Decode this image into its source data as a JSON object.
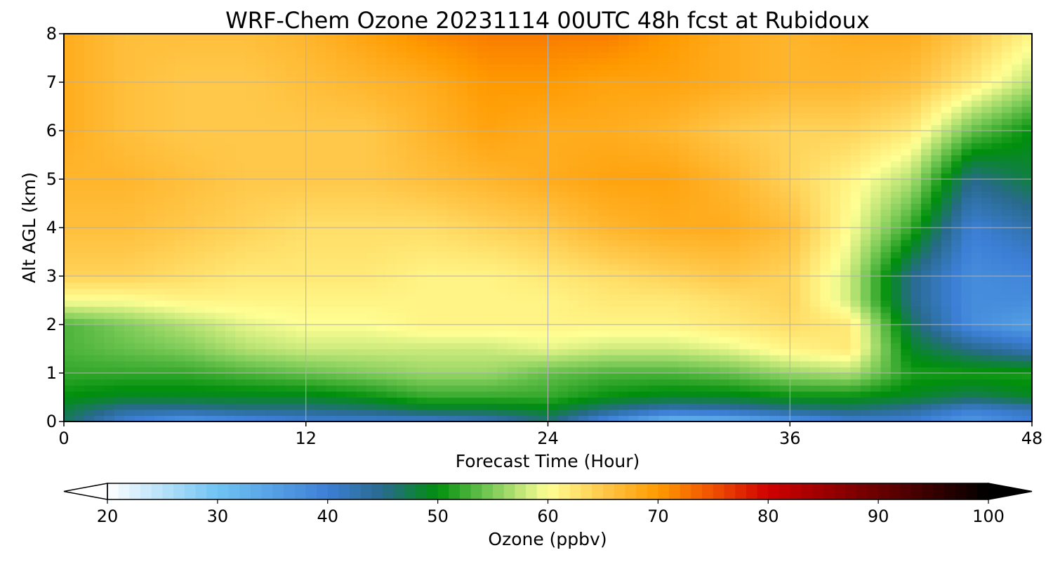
{
  "chart_data": {
    "type": "heatmap",
    "title": "WRF-Chem Ozone  20231114 00UTC 48h fcst at Rubidoux",
    "xlabel": "Forecast Time (Hour)",
    "ylabel": "Alt AGL (km)",
    "xlim": [
      0,
      48
    ],
    "ylim": [
      0,
      8
    ],
    "xticks": [
      0,
      12,
      24,
      36,
      48
    ],
    "yticks": [
      0,
      1,
      2,
      3,
      4,
      5,
      6,
      7,
      8
    ],
    "grid": true,
    "x": [
      0,
      3,
      6,
      9,
      12,
      15,
      18,
      21,
      24,
      27,
      30,
      33,
      36,
      39,
      42,
      45,
      48
    ],
    "y": [
      0,
      0.25,
      0.5,
      1,
      1.5,
      2,
      2.5,
      3,
      4,
      5,
      6,
      7,
      8
    ],
    "z": [
      [
        47,
        40,
        36,
        38,
        40,
        40,
        40,
        42,
        46,
        38,
        31,
        32,
        36,
        40,
        40,
        36,
        40
      ],
      [
        48,
        44,
        44,
        45,
        45,
        46,
        48,
        48,
        49,
        45,
        42,
        43,
        45,
        46,
        44,
        40,
        42
      ],
      [
        50,
        49,
        49,
        49,
        49,
        50,
        52,
        52,
        52,
        50,
        49,
        49,
        50,
        50,
        49,
        47,
        49
      ],
      [
        52,
        52,
        52,
        53,
        54,
        55,
        56,
        56,
        54,
        53,
        53,
        54,
        56,
        57,
        51,
        51,
        51
      ],
      [
        53,
        54,
        55,
        57,
        58,
        58,
        58,
        58,
        59,
        58,
        58,
        59,
        61,
        62,
        49,
        45,
        42
      ],
      [
        53,
        55,
        57,
        59,
        60,
        60,
        61,
        61,
        61,
        61,
        61,
        62,
        63,
        62,
        47,
        38,
        35
      ],
      [
        60,
        60,
        61,
        61,
        61,
        61,
        61,
        61,
        61,
        62,
        62,
        63,
        64,
        58,
        45,
        38,
        38
      ],
      [
        64,
        64,
        63,
        62,
        62,
        62,
        61,
        61,
        62,
        63,
        64,
        65,
        64,
        58,
        45,
        38,
        39
      ],
      [
        66,
        66,
        65,
        64,
        63,
        63,
        63,
        64,
        65,
        67,
        68,
        68,
        66,
        60,
        52,
        40,
        43
      ],
      [
        67,
        67,
        66,
        65,
        65,
        65,
        66,
        67,
        68,
        69,
        69,
        67,
        64,
        61,
        57,
        45,
        48
      ],
      [
        68,
        66,
        65,
        65,
        65,
        65,
        67,
        69,
        68,
        68,
        67,
        65,
        64,
        64,
        62,
        54,
        50
      ],
      [
        68,
        66,
        65,
        65,
        66,
        67,
        68,
        70,
        70,
        69,
        69,
        68,
        67,
        67,
        66,
        62,
        57
      ],
      [
        68,
        66,
        66,
        66,
        67,
        69,
        71,
        72,
        72,
        72,
        70,
        68,
        67,
        68,
        68,
        65,
        61
      ]
    ],
    "colorbar": {
      "label": "Ozone  (ppbv)",
      "ticks": [
        20,
        30,
        40,
        50,
        60,
        70,
        80,
        90,
        100
      ],
      "min": 20,
      "max": 100,
      "extend": "both",
      "colors": [
        {
          "v": 20,
          "c": "#ffffff"
        },
        {
          "v": 30,
          "c": "#6ec3f3"
        },
        {
          "v": 40,
          "c": "#3c7fd6"
        },
        {
          "v": 45,
          "c": "#286a8c"
        },
        {
          "v": 50,
          "c": "#008f0c"
        },
        {
          "v": 55,
          "c": "#7fcc5a"
        },
        {
          "v": 60,
          "c": "#ffff94"
        },
        {
          "v": 65,
          "c": "#ffc84a"
        },
        {
          "v": 70,
          "c": "#ff9a00"
        },
        {
          "v": 75,
          "c": "#f05000"
        },
        {
          "v": 80,
          "c": "#d00000"
        },
        {
          "v": 90,
          "c": "#6a0000"
        },
        {
          "v": 100,
          "c": "#000000"
        }
      ]
    }
  }
}
